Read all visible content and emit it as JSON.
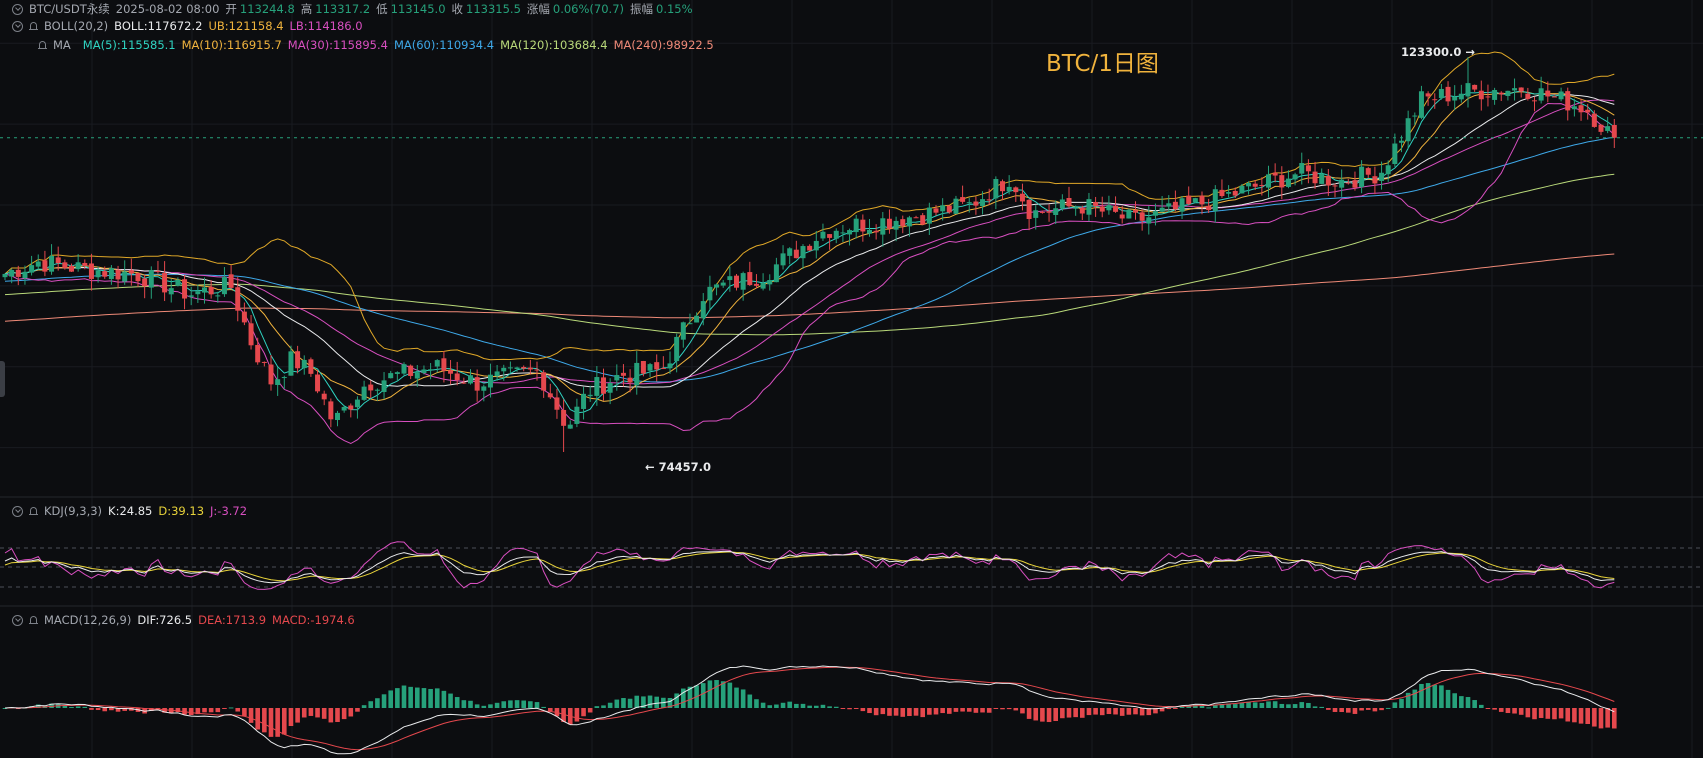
{
  "header": {
    "symbol": "BTC/USDT永续",
    "datetime": "2025-08-02 08:00",
    "open_label": "开",
    "open": "113244.8",
    "high_label": "高",
    "high": "113317.2",
    "low_label": "低",
    "low": "113145.0",
    "close_label": "收",
    "close": "113315.5",
    "change_label": "涨幅",
    "change": "0.06%(70.7)",
    "amplitude_label": "振幅",
    "amplitude": "0.15%"
  },
  "boll": {
    "name": "BOLL(20,2)",
    "mid": "BOLL:117672.2",
    "ub": "UB:121158.4",
    "lb": "LB:114186.0"
  },
  "ma": {
    "name": "MA",
    "items": [
      {
        "label": "MA(5):115585.1",
        "color": "#2fd3c1"
      },
      {
        "label": "MA(10):116915.7",
        "color": "#f0b33d"
      },
      {
        "label": "MA(30):115895.4",
        "color": "#d84fc0"
      },
      {
        "label": "MA(60):110934.4",
        "color": "#3ea8e8"
      },
      {
        "label": "MA(120):103684.4",
        "color": "#b9d97a"
      },
      {
        "label": "MA(240):98922.5",
        "color": "#ef8a78"
      }
    ]
  },
  "kdj": {
    "name": "KDJ(9,3,3)",
    "k": "K:24.85",
    "d": "D:39.13",
    "j": "J:-3.72"
  },
  "macd": {
    "name": "MACD(12,26,9)",
    "dif": "DIF:726.5",
    "dea": "DEA:1713.9",
    "macd": "MACD:-1974.6"
  },
  "chart_title": "BTC/1日图",
  "annotations": {
    "high_mark": "123300.0",
    "low_mark": "74457.0"
  },
  "colors": {
    "up": "#26a17b",
    "down": "#e5484d",
    "boll_mid": "#e9eaec",
    "boll_band": "#e0a828",
    "ma5": "#2fd3c1",
    "ma10": "#f0b33d",
    "ma30": "#d84fc0",
    "ma60": "#3ea8e8",
    "ma120": "#b9d97a",
    "ma240": "#ef8a78",
    "k": "#e9eaec",
    "d": "#e8d33a",
    "j": "#d84fc0",
    "dif": "#e9eaec",
    "dea": "#e5484d"
  },
  "chart_data": {
    "type": "candlestick",
    "title": "BTC/1日图",
    "last_close": 113315.5,
    "price_range_visible": [
      70000,
      130000
    ],
    "x_count": 243,
    "annotated_high": 123300.0,
    "annotated_low": 74457.0,
    "close_path": [
      [
        0,
        96500
      ],
      [
        8,
        98000
      ],
      [
        20,
        97000
      ],
      [
        32,
        96500
      ],
      [
        45,
        94000
      ],
      [
        55,
        95000
      ],
      [
        60,
        88000
      ],
      [
        65,
        83000
      ],
      [
        70,
        86000
      ],
      [
        75,
        84000
      ],
      [
        80,
        78000
      ],
      [
        88,
        83000
      ],
      [
        96,
        84000
      ],
      [
        105,
        85000
      ],
      [
        115,
        83000
      ],
      [
        125,
        84000
      ],
      [
        130,
        84500
      ],
      [
        137,
        77500
      ],
      [
        142,
        82000
      ],
      [
        150,
        84000
      ],
      [
        160,
        84500
      ],
      [
        170,
        94000
      ],
      [
        175,
        95000
      ],
      [
        185,
        96500
      ],
      [
        200,
        102000
      ],
      [
        220,
        103500
      ],
      [
        235,
        105000
      ],
      [
        245,
        108500
      ],
      [
        250,
        104000
      ],
      [
        262,
        105000
      ],
      [
        275,
        103000
      ],
      [
        290,
        105000
      ],
      [
        300,
        106500
      ],
      [
        315,
        109000
      ],
      [
        325,
        108000
      ],
      [
        335,
        109000
      ],
      [
        345,
        118000
      ],
      [
        355,
        119000
      ],
      [
        370,
        119500
      ],
      [
        385,
        117000
      ],
      [
        392,
        113300
      ]
    ],
    "kdj": {
      "k_last": 24.85,
      "d_last": 39.13,
      "j_last": -3.72
    },
    "macd": {
      "dif_last": 726.5,
      "dea_last": 1713.9,
      "hist_last": -1974.6
    }
  }
}
